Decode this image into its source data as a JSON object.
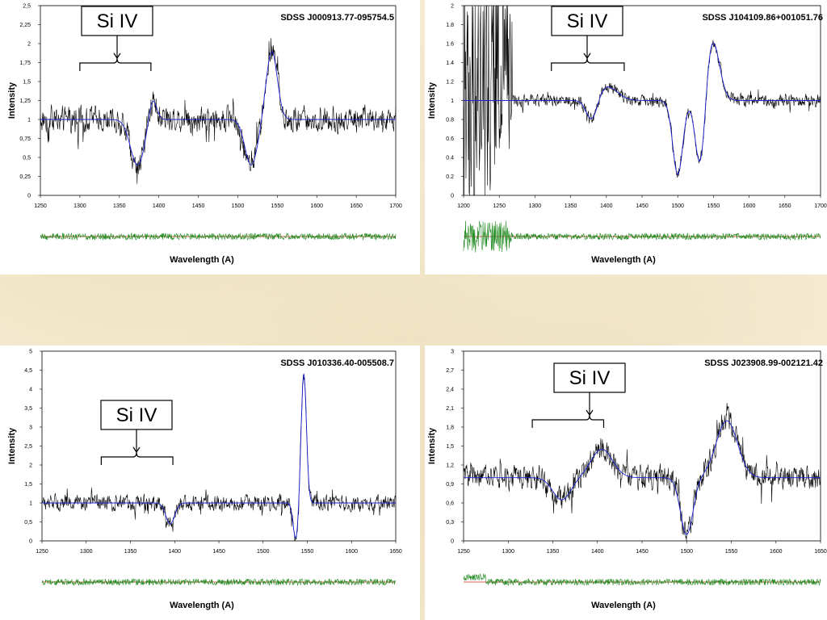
{
  "colors": {
    "spectrum": "#000000",
    "fit": "#1a22d4",
    "residual": "#1f8a1f",
    "zero_line": "#d42a1a",
    "background": "#f6edd5"
  },
  "chart_data": [
    {
      "type": "line",
      "object": "SDSS J000913.77-095754.5",
      "ylabel": "Intensity",
      "xlabel": "Wavelength (A)",
      "xlim": [
        1250,
        1700
      ],
      "ylim": [
        0,
        2.5
      ],
      "xticks": [
        "1250",
        "1300",
        "1350",
        "1400",
        "1450",
        "1500",
        "1550",
        "1600",
        "1650",
        "1700"
      ],
      "yticks": [
        "0",
        "0,25",
        "0,5",
        "0,75",
        "1",
        "1,25",
        "1,5",
        "1,75",
        "2",
        "2,25",
        "2,5"
      ],
      "callout": {
        "label": "Si IV",
        "range": [
          1300,
          1390
        ]
      },
      "continuum": 1.0,
      "features": [
        {
          "type": "absorption",
          "center": 1373,
          "depth": 0.6,
          "width": 9
        },
        {
          "type": "absorption",
          "center": 1517,
          "depth": 0.6,
          "width": 8
        },
        {
          "type": "emission",
          "center": 1543,
          "height": 0.9,
          "width": 7
        },
        {
          "type": "emission",
          "center": 1392,
          "height": 0.3,
          "width": 5
        }
      ],
      "noise": 0.18,
      "series": [
        {
          "name": "spectrum"
        },
        {
          "name": "fit"
        },
        {
          "name": "residual"
        }
      ]
    },
    {
      "type": "line",
      "object": "SDSS J104109.86+001051.76",
      "ylabel": "Intensity",
      "xlabel": "Wavelength (A)",
      "xlim": [
        1200,
        1700
      ],
      "ylim": [
        0,
        2
      ],
      "xticks": [
        "1200",
        "1250",
        "1300",
        "1350",
        "1400",
        "1450",
        "1500",
        "1550",
        "1600",
        "1650",
        "1700"
      ],
      "yticks": [
        "0",
        "0.2",
        "0.4",
        "0.6",
        "0.8",
        "1",
        "1.2",
        "1.4",
        "1.6",
        "1.8",
        "2"
      ],
      "callout": {
        "label": "Si IV",
        "range": [
          1323,
          1425
        ]
      },
      "continuum": 1.0,
      "features": [
        {
          "type": "absorption",
          "center": 1500,
          "depth": 0.78,
          "width": 7
        },
        {
          "type": "absorption",
          "center": 1532,
          "depth": 0.8,
          "width": 7
        },
        {
          "type": "emission",
          "center": 1548,
          "height": 0.65,
          "width": 10
        },
        {
          "type": "absorption",
          "center": 1380,
          "depth": 0.25,
          "width": 8
        },
        {
          "type": "emission",
          "center": 1400,
          "height": 0.15,
          "width": 15
        }
      ],
      "noise": 0.07,
      "series": [
        {
          "name": "spectrum"
        },
        {
          "name": "fit"
        },
        {
          "name": "residual"
        }
      ]
    },
    {
      "type": "line",
      "object": "SDSS J010336.40-005508.7",
      "ylabel": "Intensity",
      "xlabel": "Wavelength (A)",
      "xlim": [
        1250,
        1650
      ],
      "ylim": [
        0,
        5
      ],
      "xticks": [
        "1250",
        "1300",
        "1350",
        "1400",
        "1450",
        "1500",
        "1550",
        "1600",
        "1650"
      ],
      "yticks": [
        "0",
        "0,5",
        "1",
        "1,5",
        "2",
        "2,5",
        "3",
        "3,5",
        "4",
        "4,5",
        "5"
      ],
      "callout": {
        "label": "Si IV",
        "range": [
          1317,
          1398
        ]
      },
      "continuum": 1.0,
      "features": [
        {
          "type": "absorption",
          "center": 1537,
          "depth": 0.95,
          "width": 3
        },
        {
          "type": "emission",
          "center": 1546,
          "height": 3.4,
          "width": 3
        },
        {
          "type": "absorption",
          "center": 1395,
          "depth": 0.55,
          "width": 5
        }
      ],
      "noise": 0.22,
      "series": [
        {
          "name": "spectrum"
        },
        {
          "name": "fit"
        },
        {
          "name": "residual"
        }
      ]
    },
    {
      "type": "line",
      "object": "SDSS J023908.99-002121.42",
      "ylabel": "Intensity",
      "xlabel": "Wavelength (A)",
      "xlim": [
        1250,
        1650
      ],
      "ylim": [
        0,
        3
      ],
      "xticks": [
        "1250",
        "1300",
        "1350",
        "1400",
        "1450",
        "1500",
        "1550",
        "1600",
        "1650"
      ],
      "yticks": [
        "0",
        "0,3",
        "0,6",
        "0,9",
        "1,2",
        "1,5",
        "1,8",
        "2,1",
        "2,4",
        "2,7",
        "3"
      ],
      "callout": {
        "label": "Si IV",
        "range": [
          1327,
          1407
        ]
      },
      "continuum": 1.0,
      "features": [
        {
          "type": "absorption",
          "center": 1360,
          "depth": 0.35,
          "width": 10
        },
        {
          "type": "emission",
          "center": 1405,
          "height": 0.45,
          "width": 12
        },
        {
          "type": "absorption",
          "center": 1500,
          "depth": 0.9,
          "width": 7
        },
        {
          "type": "emission",
          "center": 1545,
          "height": 0.9,
          "width": 12
        }
      ],
      "noise": 0.2,
      "series": [
        {
          "name": "spectrum"
        },
        {
          "name": "fit"
        },
        {
          "name": "residual"
        }
      ]
    }
  ]
}
